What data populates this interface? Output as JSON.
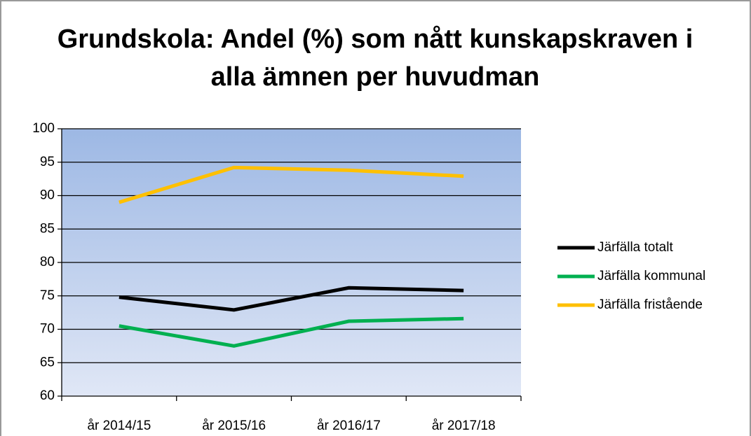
{
  "chart_data": {
    "type": "line",
    "title": [
      "Grundskola: Andel (%) som nått kunskapskraven i",
      "alla ämnen per huvudman"
    ],
    "categories": [
      "år 2014/15",
      "år 2015/16",
      "år 2016/17",
      "år 2017/18"
    ],
    "series": [
      {
        "name": "Järfälla totalt",
        "color": "#000000",
        "values": [
          74.8,
          72.9,
          76.2,
          75.8
        ]
      },
      {
        "name": "Järfälla kommunal",
        "color": "#00b050",
        "values": [
          70.5,
          67.5,
          71.2,
          71.6
        ]
      },
      {
        "name": "Järfälla fristående",
        "color": "#ffc000",
        "values": [
          89.0,
          94.2,
          93.8,
          92.9
        ]
      }
    ],
    "ylim": [
      60,
      100
    ],
    "yticks": [
      60,
      65,
      70,
      75,
      80,
      85,
      90,
      95,
      100
    ],
    "grid": true,
    "legend": "right"
  }
}
